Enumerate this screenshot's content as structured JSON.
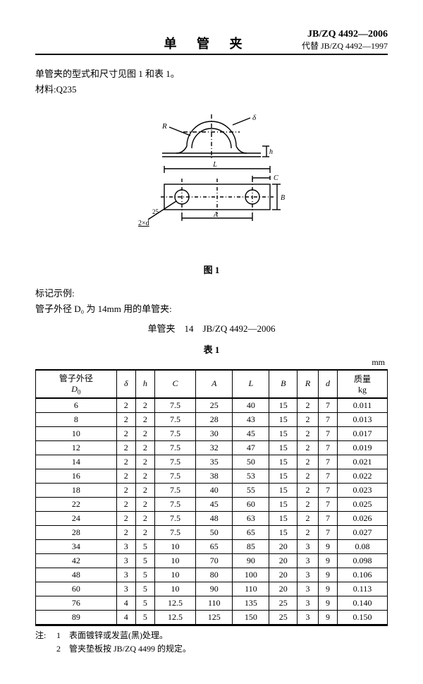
{
  "standard": {
    "code": "JB/ZQ 4492—2006",
    "replaces": "代替 JB/ZQ 4492—1997"
  },
  "title": "单 管 夹",
  "intro_line1": "单管夹的型式和尺寸见图 1 和表 1。",
  "intro_line2": "材料:Q235",
  "figure": {
    "caption": "图 1",
    "labels": {
      "delta": "δ",
      "R": "R",
      "h": "h",
      "L": "L",
      "A": "A",
      "C": "C",
      "B": "B",
      "dim2xd": "2×d",
      "angle": "25"
    }
  },
  "example": {
    "heading": "标记示例:",
    "line": "管子外径 D₀ 为 14mm 用的单管夹:",
    "designation": "单管夹　14　JB/ZQ 4492—2006"
  },
  "table": {
    "caption": "表 1",
    "unit": "mm",
    "columns": [
      "管子外径 D₀",
      "δ",
      "h",
      "C",
      "A",
      "L",
      "B",
      "R",
      "d",
      "质量 kg"
    ],
    "rows": [
      [
        "6",
        "2",
        "2",
        "7.5",
        "25",
        "40",
        "15",
        "2",
        "7",
        "0.011"
      ],
      [
        "8",
        "2",
        "2",
        "7.5",
        "28",
        "43",
        "15",
        "2",
        "7",
        "0.013"
      ],
      [
        "10",
        "2",
        "2",
        "7.5",
        "30",
        "45",
        "15",
        "2",
        "7",
        "0.017"
      ],
      [
        "12",
        "2",
        "2",
        "7.5",
        "32",
        "47",
        "15",
        "2",
        "7",
        "0.019"
      ],
      [
        "14",
        "2",
        "2",
        "7.5",
        "35",
        "50",
        "15",
        "2",
        "7",
        "0.021"
      ],
      [
        "16",
        "2",
        "2",
        "7.5",
        "38",
        "53",
        "15",
        "2",
        "7",
        "0.022"
      ],
      [
        "18",
        "2",
        "2",
        "7.5",
        "40",
        "55",
        "15",
        "2",
        "7",
        "0.023"
      ],
      [
        "22",
        "2",
        "2",
        "7.5",
        "45",
        "60",
        "15",
        "2",
        "7",
        "0.025"
      ],
      [
        "24",
        "2",
        "2",
        "7.5",
        "48",
        "63",
        "15",
        "2",
        "7",
        "0.026"
      ],
      [
        "28",
        "2",
        "2",
        "7.5",
        "50",
        "65",
        "15",
        "2",
        "7",
        "0.027"
      ],
      [
        "34",
        "3",
        "5",
        "10",
        "65",
        "85",
        "20",
        "3",
        "9",
        "0.08"
      ],
      [
        "42",
        "3",
        "5",
        "10",
        "70",
        "90",
        "20",
        "3",
        "9",
        "0.098"
      ],
      [
        "48",
        "3",
        "5",
        "10",
        "80",
        "100",
        "20",
        "3",
        "9",
        "0.106"
      ],
      [
        "60",
        "3",
        "5",
        "10",
        "90",
        "110",
        "20",
        "3",
        "9",
        "0.113"
      ],
      [
        "76",
        "4",
        "5",
        "12.5",
        "110",
        "135",
        "25",
        "3",
        "9",
        "0.140"
      ],
      [
        "89",
        "4",
        "5",
        "12.5",
        "125",
        "150",
        "25",
        "3",
        "9",
        "0.150"
      ]
    ]
  },
  "notes": {
    "label": "注:",
    "items": [
      "1　表面镀锌或发蓝(黑)处理。",
      "2　管夹垫板按 JB/ZQ 4499 的规定。"
    ]
  }
}
